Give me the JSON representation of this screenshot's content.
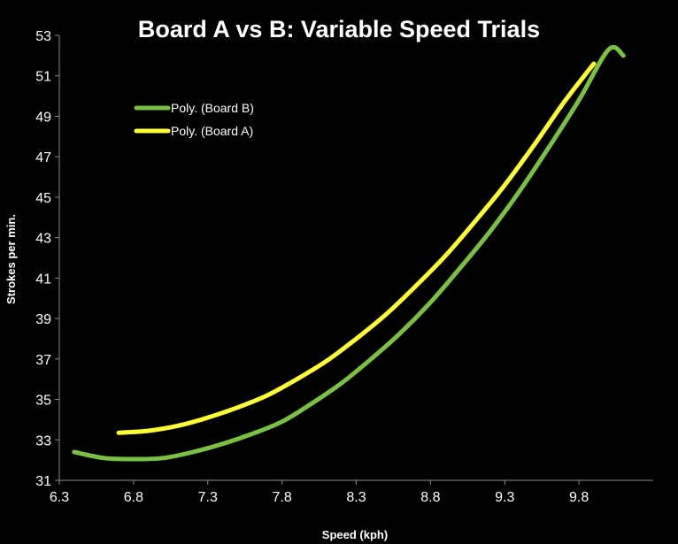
{
  "chart_data": {
    "type": "line",
    "title": "Board A vs B: Variable Speed Trials",
    "xlabel": "Speed (kph)",
    "ylabel": "Strokes per min.",
    "xlim": [
      6.3,
      10.3
    ],
    "ylim": [
      31,
      53
    ],
    "x_ticks": [
      "6.3",
      "6.8",
      "7.3",
      "7.8",
      "8.3",
      "8.8",
      "9.3",
      "9.8"
    ],
    "y_ticks": [
      "31",
      "33",
      "35",
      "37",
      "39",
      "41",
      "43",
      "45",
      "47",
      "49",
      "51",
      "53"
    ],
    "grid": false,
    "legend_position": "top-left",
    "series": [
      {
        "name": "Poly. (Board B)",
        "color": "#7ac143",
        "x": [
          6.4,
          6.6,
          6.8,
          7.0,
          7.2,
          7.4,
          7.6,
          7.8,
          8.0,
          8.2,
          8.4,
          8.6,
          8.8,
          9.0,
          9.2,
          9.4,
          9.6,
          9.8,
          10.0,
          10.1
        ],
        "y": [
          32.4,
          32.1,
          32.05,
          32.1,
          32.4,
          32.8,
          33.3,
          33.9,
          34.8,
          35.8,
          37.0,
          38.3,
          39.8,
          41.5,
          43.3,
          45.3,
          47.5,
          49.8,
          52.3,
          52.0
        ]
      },
      {
        "name": "Poly. (Board A)",
        "color": "#ffff33",
        "x": [
          6.7,
          6.9,
          7.1,
          7.3,
          7.5,
          7.7,
          7.9,
          8.1,
          8.3,
          8.5,
          8.7,
          8.9,
          9.1,
          9.3,
          9.5,
          9.7,
          9.9
        ],
        "y": [
          33.35,
          33.45,
          33.7,
          34.1,
          34.6,
          35.2,
          36.0,
          36.9,
          38.0,
          39.2,
          40.6,
          42.1,
          43.8,
          45.6,
          47.6,
          49.7,
          51.6
        ]
      }
    ]
  }
}
